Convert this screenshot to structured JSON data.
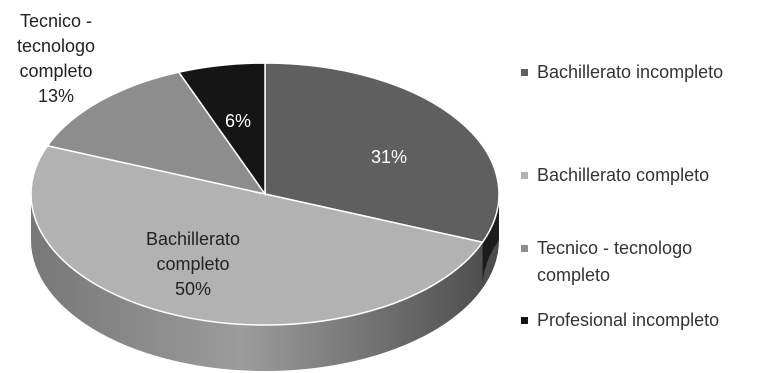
{
  "chart_data": {
    "type": "pie",
    "style": "3d",
    "title": "",
    "legend_position": "right",
    "slices": [
      {
        "label": "Bachillerato incompleto",
        "legend": "Bachillerato incompleto",
        "value": 31,
        "display": [
          "31%"
        ],
        "color": "#5f5f5f"
      },
      {
        "label": "Bachillerato completo",
        "legend": "Bachillerato completo",
        "value": 50,
        "display": [
          "Bachillerato",
          "completo",
          "50%"
        ],
        "color": "#b2b2b2"
      },
      {
        "label": "Tecnico - tecnologo completo",
        "legend": "Tecnico - tecnologo completo",
        "legend_lines": [
          "Tecnico - tecnologo",
          "completo"
        ],
        "value": 13,
        "display": [
          "Tecnico -",
          "tecnologo",
          "completo",
          "13%"
        ],
        "color": "#8d8d8d"
      },
      {
        "label": "Profesional incompleto",
        "legend": "Profesional incompleto",
        "value": 6,
        "display": [
          "6%"
        ],
        "color": "#151515"
      }
    ]
  }
}
